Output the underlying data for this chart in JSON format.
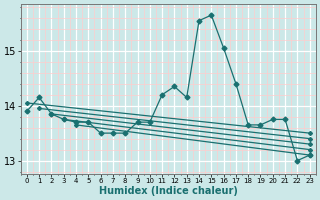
{
  "xlabel": "Humidex (Indice chaleur)",
  "bg_color": "#cce8e8",
  "grid_color_major": "#ffffff",
  "grid_color_minor": "#ffcccc",
  "line_color": "#1a7070",
  "xlim": [
    -0.5,
    23.5
  ],
  "ylim": [
    12.75,
    15.85
  ],
  "yticks": [
    13,
    14,
    15
  ],
  "xticks": [
    0,
    1,
    2,
    3,
    4,
    5,
    6,
    7,
    8,
    9,
    10,
    11,
    12,
    13,
    14,
    15,
    16,
    17,
    18,
    19,
    20,
    21,
    22,
    23
  ],
  "lines": [
    {
      "x": [
        0,
        1,
        2,
        3,
        4,
        5,
        6,
        7,
        8,
        9,
        10,
        11,
        12,
        13,
        14,
        15,
        16,
        17,
        18,
        19,
        20,
        21,
        22,
        23
      ],
      "y": [
        13.9,
        14.15,
        13.85,
        13.75,
        13.7,
        13.7,
        13.5,
        13.5,
        13.5,
        13.7,
        13.7,
        14.2,
        14.35,
        14.15,
        15.55,
        15.65,
        15.05,
        14.4,
        13.65,
        13.65,
        13.75,
        13.75,
        13.0,
        13.1
      ]
    },
    {
      "x": [
        0,
        23
      ],
      "y": [
        14.05,
        13.5
      ]
    },
    {
      "x": [
        1,
        23
      ],
      "y": [
        13.95,
        13.4
      ]
    },
    {
      "x": [
        2,
        23
      ],
      "y": [
        13.85,
        13.3
      ]
    },
    {
      "x": [
        3,
        23
      ],
      "y": [
        13.75,
        13.2
      ]
    },
    {
      "x": [
        4,
        23
      ],
      "y": [
        13.65,
        13.1
      ]
    }
  ]
}
